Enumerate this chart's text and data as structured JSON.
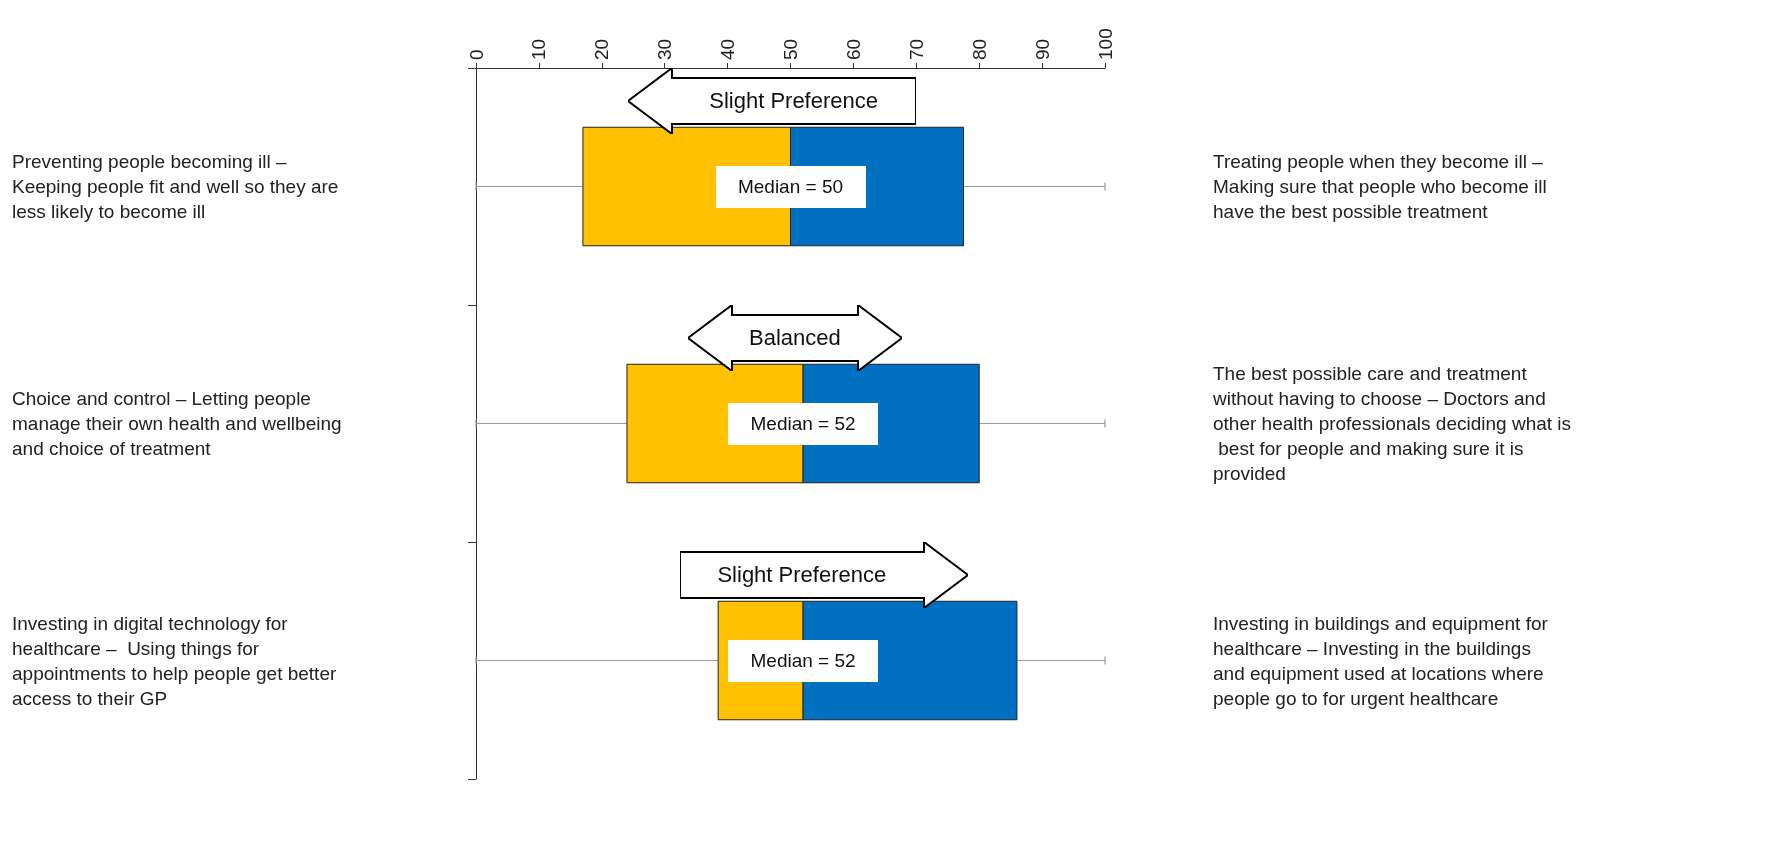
{
  "chart_data": {
    "type": "box",
    "orientation": "horizontal",
    "categories": [
      "Preventing people becoming ill – Keeping people fit and well so they are less likely to become ill",
      "Choice and control – Letting people manage their own health and wellbeing and choice of treatment",
      "Investing in digital technology for healthcare –  Using things for appointments to help people get better access to their GP"
    ],
    "y2_categories": [
      "Treating people when they become ill –  Making sure that people who become ill have the best possible treatment",
      "The best possible care and treatment without having to choose – Doctors and other health professionals deciding what is best for people and making sure it is provided",
      "Investing in buildings and equipment for healthcare – Investing in the buildings and equipment used at locations where people go to for urgent healthcare"
    ],
    "series": [
      {
        "color": "#ffc000",
        "boxes": [
          {
            "low": 0,
            "q1": 17,
            "median": 50,
            "q3": 77.5,
            "high": 100
          },
          {
            "low": 0,
            "q1": 24,
            "median": 52,
            "q3": 80,
            "high": 100
          },
          {
            "low": 0,
            "q1": 38.5,
            "median": 52,
            "q3": 86,
            "high": 100
          }
        ]
      }
    ],
    "colors": [
      "#0070c0",
      "#0070c0",
      "#0070c0"
    ],
    "xlim": [
      0,
      100
    ],
    "xticks": [
      0,
      10,
      20,
      30,
      40,
      50,
      60,
      70,
      80,
      90,
      100
    ],
    "annotations": [
      "Slight Preference",
      "Balanced",
      "Slight Preference",
      "Median = 50",
      "Median = 52",
      "Median = 52"
    ],
    "grid": false
  }
}
